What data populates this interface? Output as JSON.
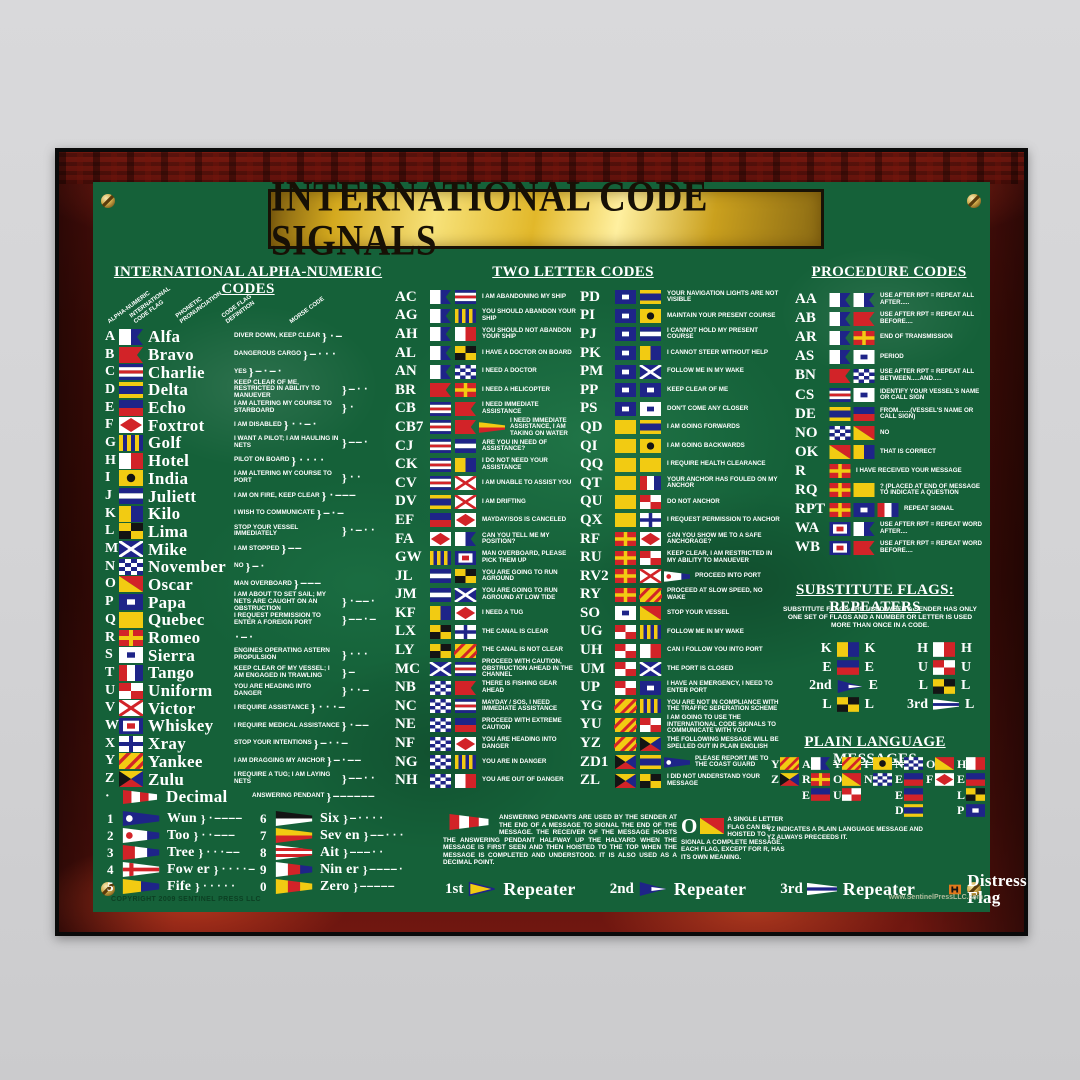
{
  "title": "INTERNATIONAL CODE SIGNALS",
  "copyright": "COPYRIGHT 2009 SENTINEL PRESS LLC",
  "website": "www.SentinelPressLLC.com",
  "colors": {
    "board_green": "#156139",
    "frame_red": "#4e0e09",
    "banner_gold": "#e2b82a",
    "flag_red": "#d22328",
    "flag_blue": "#1e2488",
    "flag_yellow": "#f2cb12",
    "distress_orange": "#e2791c"
  },
  "alpha": {
    "heading": "INTERNATIONAL ALPHA-NUMERIC CODES",
    "col_labels": [
      "ALPHA-NUMERIC",
      "INTERNATIONAL\nCODE FLAG",
      "PHONETIC\nPRONUNCIATION",
      "CODE FLAG\nDEFINITION",
      "MORSE CODE"
    ],
    "rows": [
      {
        "letter": "A",
        "flag": "A",
        "name": "Alfa",
        "meaning": "DIVER DOWN, KEEP CLEAR",
        "morse": "·—"
      },
      {
        "letter": "B",
        "flag": "B",
        "name": "Bravo",
        "meaning": "DANGEROUS CARGO",
        "morse": "—···"
      },
      {
        "letter": "C",
        "flag": "C",
        "name": "Charlie",
        "meaning": "YES",
        "morse": "—·—·"
      },
      {
        "letter": "D",
        "flag": "D",
        "name": "Delta",
        "meaning": "KEEP CLEAR OF ME, RESTRICTED IN ABILITY TO MANUEVER",
        "morse": "—··"
      },
      {
        "letter": "E",
        "flag": "E",
        "name": "Echo",
        "meaning": "I AM ALTERING MY COURSE TO STARBOARD",
        "morse": "·"
      },
      {
        "letter": "F",
        "flag": "F",
        "name": "Foxtrot",
        "meaning": "I AM DISABLED",
        "morse": "··—·"
      },
      {
        "letter": "G",
        "flag": "G",
        "name": "Golf",
        "meaning": "I WANT A PILOT; I AM HAULING IN NETS",
        "morse": "——·"
      },
      {
        "letter": "H",
        "flag": "H",
        "name": "Hotel",
        "meaning": "PILOT ON BOARD",
        "morse": "····"
      },
      {
        "letter": "I",
        "flag": "I",
        "name": "India",
        "meaning": "I AM ALTERING MY COURSE TO PORT",
        "morse": "··"
      },
      {
        "letter": "J",
        "flag": "J",
        "name": "Juliett",
        "meaning": "I AM ON FIRE, KEEP CLEAR",
        "morse": "·———"
      },
      {
        "letter": "K",
        "flag": "K",
        "name": "Kilo",
        "meaning": "I WISH TO COMMUNICATE",
        "morse": "—·—"
      },
      {
        "letter": "L",
        "flag": "L",
        "name": "Lima",
        "meaning": "STOP YOUR VESSEL IMMEDIATELY",
        "morse": "·—··"
      },
      {
        "letter": "M",
        "flag": "M",
        "name": "Mike",
        "meaning": "I AM STOPPED",
        "morse": "——"
      },
      {
        "letter": "N",
        "flag": "N",
        "name": "November",
        "meaning": "NO",
        "morse": "—·"
      },
      {
        "letter": "O",
        "flag": "O",
        "name": "Oscar",
        "meaning": "MAN OVERBOARD",
        "morse": "———"
      },
      {
        "letter": "P",
        "flag": "P",
        "name": "Papa",
        "meaning": "I AM ABOUT TO SET SAIL; MY NETS ARE CAUGHT ON AN OBSTRUCTION",
        "morse": "·——·"
      },
      {
        "letter": "Q",
        "flag": "Q",
        "name": "Quebec",
        "meaning": "I REQUEST PERMISSION TO ENTER A FOREIGN PORT",
        "morse": "——·—"
      },
      {
        "letter": "R",
        "flag": "R",
        "name": "Romeo",
        "meaning": "",
        "morse": "·—·"
      },
      {
        "letter": "S",
        "flag": "S",
        "name": "Sierra",
        "meaning": "ENGINES OPERATING ASTERN PROPULSION",
        "morse": "···"
      },
      {
        "letter": "T",
        "flag": "T",
        "name": "Tango",
        "meaning": "KEEP CLEAR OF MY VESSEL; I AM ENGAGED IN TRAWLING",
        "morse": "—"
      },
      {
        "letter": "U",
        "flag": "U",
        "name": "Uniform",
        "meaning": "YOU ARE HEADING INTO DANGER",
        "morse": "··—"
      },
      {
        "letter": "V",
        "flag": "V",
        "name": "Victor",
        "meaning": "I REQUIRE ASSISTANCE",
        "morse": "···—"
      },
      {
        "letter": "W",
        "flag": "W",
        "name": "Whiskey",
        "meaning": "I REQUIRE MEDICAL ASSISTANCE",
        "morse": "·——"
      },
      {
        "letter": "X",
        "flag": "X",
        "name": "Xray",
        "meaning": "STOP YOUR INTENTIONS",
        "morse": "—··—"
      },
      {
        "letter": "Y",
        "flag": "Y",
        "name": "Yankee",
        "meaning": "I AM DRAGGING MY ANCHOR",
        "morse": "—·——"
      },
      {
        "letter": "Z",
        "flag": "Z",
        "name": "Zulu",
        "meaning": "I REQUIRE A TUG; I AM LAYING NETS",
        "morse": "——··"
      },
      {
        "letter": "·",
        "flag": "dec",
        "name": "Decimal",
        "meaning": "ANSWERING PENDANT",
        "morse": "——————"
      }
    ],
    "numbers": [
      {
        "num": "1",
        "flag": "1",
        "name": "Wun",
        "morse": "·————"
      },
      {
        "num": "2",
        "flag": "2",
        "name": "Too",
        "morse": "··———"
      },
      {
        "num": "3",
        "flag": "3",
        "name": "Tree",
        "morse": "···——"
      },
      {
        "num": "4",
        "flag": "4",
        "name": "Fow er",
        "morse": "····—"
      },
      {
        "num": "5",
        "flag": "5",
        "name": "Fife",
        "morse": "·····"
      },
      {
        "num": "6",
        "flag": "6",
        "name": "Six",
        "morse": "—····"
      },
      {
        "num": "7",
        "flag": "7",
        "name": "Sev en",
        "morse": "——···"
      },
      {
        "num": "8",
        "flag": "8",
        "name": "Ait",
        "morse": "———··"
      },
      {
        "num": "9",
        "flag": "9",
        "name": "Nin er",
        "morse": "————·"
      },
      {
        "num": "0",
        "flag": "0",
        "name": "Zero",
        "morse": "—————"
      }
    ]
  },
  "two_letter": {
    "heading": "TWO LETTER CODES",
    "left": [
      {
        "code": "AC",
        "meaning": "I AM ABANDONING MY SHIP"
      },
      {
        "code": "AG",
        "meaning": "YOU SHOULD ABANDON YOUR SHIP"
      },
      {
        "code": "AH",
        "meaning": "YOU SHOULD NOT ABANDON YOUR SHIP"
      },
      {
        "code": "AL",
        "meaning": "I HAVE A DOCTOR ON BOARD"
      },
      {
        "code": "AN",
        "meaning": "I NEED A DOCTOR"
      },
      {
        "code": "BR",
        "meaning": "I NEED A HELICOPTER"
      },
      {
        "code": "CB",
        "meaning": "I NEED IMMEDIATE ASSISTANCE"
      },
      {
        "code": "CB7",
        "meaning": "I NEED IMMEDIATE ASSISTANCE, I AM TAKING ON WATER"
      },
      {
        "code": "CJ",
        "meaning": "ARE YOU IN NEED OF ASSISTANCE?"
      },
      {
        "code": "CK",
        "meaning": "I DO NOT NEED YOUR ASSISTANCE"
      },
      {
        "code": "CV",
        "meaning": "I AM UNABLE TO ASSIST YOU"
      },
      {
        "code": "DV",
        "meaning": "I AM DRIFTING"
      },
      {
        "code": "EF",
        "meaning": "MAYDAY/SOS IS CANCELED"
      },
      {
        "code": "FA",
        "meaning": "CAN YOU TELL ME MY POSITION?"
      },
      {
        "code": "GW",
        "meaning": "MAN OVERBOARD, PLEASE PICK THEM UP"
      },
      {
        "code": "JL",
        "meaning": "YOU ARE GOING TO RUN AGROUND"
      },
      {
        "code": "JM",
        "meaning": "YOU ARE GOING TO RUN AGROUND AT LOW TIDE"
      },
      {
        "code": "KF",
        "meaning": "I NEED A TUG"
      },
      {
        "code": "LX",
        "meaning": "THE CANAL IS CLEAR"
      },
      {
        "code": "LY",
        "meaning": "THE CANAL IS NOT CLEAR"
      },
      {
        "code": "MC",
        "meaning": "PROCEED WITH CAUTION, OBSTRUCTION AHEAD IN THE CHANNEL"
      },
      {
        "code": "NB",
        "meaning": "THERE IS FISHING GEAR AHEAD"
      },
      {
        "code": "NC",
        "meaning": "MAYDAY / SOS, I NEED IMMEDIATE ASSISTANCE"
      },
      {
        "code": "NE",
        "meaning": "PROCEED WITH EXTREME CAUTION"
      },
      {
        "code": "NF",
        "meaning": "YOU ARE HEADING INTO DANGER"
      },
      {
        "code": "NG",
        "meaning": "YOU ARE IN DANGER"
      },
      {
        "code": "NH",
        "meaning": "YOU ARE OUT OF DANGER"
      }
    ],
    "right": [
      {
        "code": "PD",
        "meaning": "YOUR NAVIGATION LIGHTS ARE NOT VISIBLE"
      },
      {
        "code": "PI",
        "meaning": "MAINTAIN YOUR PRESENT COURSE"
      },
      {
        "code": "PJ",
        "meaning": "I CANNOT HOLD MY PRESENT COURSE"
      },
      {
        "code": "PK",
        "meaning": "I CANNOT STEER WITHOUT HELP"
      },
      {
        "code": "PM",
        "meaning": "FOLLOW ME IN MY WAKE"
      },
      {
        "code": "PP",
        "meaning": "KEEP CLEAR OF ME"
      },
      {
        "code": "PS",
        "meaning": "DON'T COME ANY CLOSER"
      },
      {
        "code": "QD",
        "meaning": "I AM GOING FORWARDS"
      },
      {
        "code": "QI",
        "meaning": "I AM GOING BACKWARDS"
      },
      {
        "code": "QQ",
        "meaning": "I REQUIRE HEALTH CLEARANCE"
      },
      {
        "code": "QT",
        "meaning": "YOUR ANCHOR HAS FOULED ON MY ANCHOR"
      },
      {
        "code": "QU",
        "meaning": "DO NOT ANCHOR"
      },
      {
        "code": "QX",
        "meaning": "I REQUEST PERMISSION TO ANCHOR"
      },
      {
        "code": "RF",
        "meaning": "CAN YOU SHOW ME TO A SAFE ANCHORAGE?"
      },
      {
        "code": "RU",
        "meaning": "KEEP CLEAR, I AM RESTRICTED IN MY ABILITY TO MANUEVER"
      },
      {
        "code": "RV2",
        "meaning": "PROCEED INTO PORT"
      },
      {
        "code": "RY",
        "meaning": "PROCEED AT SLOW SPEED, NO WAKE"
      },
      {
        "code": "SO",
        "meaning": "STOP YOUR VESSEL"
      },
      {
        "code": "UG",
        "meaning": "FOLLOW ME IN MY WAKE"
      },
      {
        "code": "UH",
        "meaning": "CAN I FOLLOW YOU INTO PORT"
      },
      {
        "code": "UM",
        "meaning": "THE PORT IS CLOSED"
      },
      {
        "code": "UP",
        "meaning": "I HAVE AN EMERGENCY, I NEED TO ENTER PORT"
      },
      {
        "code": "YG",
        "meaning": "YOU ARE NOT IN COMPLIANCE WITH THE TRAFFIC SEPERATION SCHEME"
      },
      {
        "code": "YU",
        "meaning": "I AM GOING TO USE THE INTERNATIONAL CODE SIGNALS TO COMMUNICATE WITH YOU"
      },
      {
        "code": "YZ",
        "meaning": "THE FOLLOWING MESSAGE WILL BE SPELLED OUT IN PLAIN ENGLISH"
      },
      {
        "code": "ZD1",
        "meaning": "PLEASE REPORT ME TO THE COAST GUARD"
      },
      {
        "code": "ZL",
        "meaning": "I DID NOT UNDERSTAND YOUR MESSAGE"
      }
    ]
  },
  "procedure": {
    "heading": "PROCEDURE CODES",
    "rows": [
      {
        "code": "AA",
        "meaning": "USE AFTER RPT = REPEAT ALL AFTER....."
      },
      {
        "code": "AB",
        "meaning": "USE AFTER RPT = REPEAT ALL BEFORE...."
      },
      {
        "code": "AR",
        "meaning": "END OF TRANSMISSION"
      },
      {
        "code": "AS",
        "meaning": "PERIOD"
      },
      {
        "code": "BN",
        "meaning": "USE AFTER RPT = REPEAT ALL BETWEEN.....AND....."
      },
      {
        "code": "CS",
        "meaning": "IDENTIFY YOUR VESSEL'S NAME OR CALL SIGN"
      },
      {
        "code": "DE",
        "meaning": "FROM.......(VESSEL'S NAME OR CALL SIGN)"
      },
      {
        "code": "NO",
        "meaning": "NO"
      },
      {
        "code": "OK",
        "meaning": "THAT IS CORRECT"
      },
      {
        "code": "R",
        "meaning": "I HAVE RECEIVED YOUR MESSAGE"
      },
      {
        "code": "RQ",
        "meaning": "?  (PLACED AT END OF MESSAGE TO INDICATE A QUESTION"
      },
      {
        "code": "RPT",
        "meaning": "REPEAT SIGNAL"
      },
      {
        "code": "WA",
        "meaning": "USE AFTER RPT = REPEAT WORD AFTER...."
      },
      {
        "code": "WB",
        "meaning": "USE AFTER RPT = REPEAT WORD BEFORE...."
      }
    ]
  },
  "substitute": {
    "heading": "SUBSTITUTE FLAGS: REPEATERS",
    "note": "SUBSTITUTE FLAGS ARE USED WHEN A SENDER HAS ONLY ONE SET OF FLAGS AND A NUMBER OR LETTER IS USED MORE THAN ONCE IN A CODE.",
    "left_rows": [
      {
        "label": "K",
        "flag": "K",
        "result": "K"
      },
      {
        "label": "E",
        "flag": "E",
        "result": "E"
      },
      {
        "label": "2nd",
        "flag": "sub2",
        "result": "E"
      },
      {
        "label": "L",
        "flag": "L",
        "result": "L"
      }
    ],
    "right_rows": [
      {
        "label": "H",
        "flag": "H",
        "result": "H"
      },
      {
        "label": "U",
        "flag": "U",
        "result": "U"
      },
      {
        "label": "L",
        "flag": "L",
        "result": "L"
      },
      {
        "label": "3rd",
        "flag": "sub3",
        "result": "L"
      }
    ]
  },
  "plain_language": {
    "heading": "PLAIN LANGUAGE MESSAGES",
    "message": "YZ ARE YOU IN NEED OF HELP",
    "columns": [
      [
        "Y",
        "Z"
      ],
      [
        "A",
        "R",
        "E"
      ],
      [
        "Y",
        "O",
        "U"
      ],
      [
        "I",
        "N"
      ],
      [
        "N",
        "E",
        "E",
        "D"
      ],
      [
        "O",
        "F"
      ],
      [
        "H",
        "E",
        "L",
        "P"
      ]
    ],
    "note": "YZ INDICATES A PLAIN LANGUAGE MESSAGE AND YZ ALWAYS PRECEEDS IT."
  },
  "answering": {
    "text": "ANSWERING PENDANTS ARE USED BY THE SENDER AT THE END OF A MESSAGE TO SIGNAL THE END OF THE MESSAGE. THE RECEIVER OF THE MESSAGE HOISTS THE ANSWERING PENDANT HALFWAY UP THE HALYARD WHEN THE MESSAGE IS FIRST SEEN AND THEN HOISTED TO THE TOP WHEN THE MESSAGE IS COMPLETED AND UNDERSTOOD. IT IS ALSO USED AS A DECIMAL POINT."
  },
  "single_letter": {
    "letter": "O",
    "flag": "O",
    "text": "A SINGLE LETTER FLAG CAN BE HOISTED TO SIGNAL A COMPLETE MESSAGE. EACH FLAG, EXCEPT FOR R, HAS ITS OWN MEANING."
  },
  "repeaters": [
    {
      "label": "1st",
      "flag": "sub1",
      "word": "Repeater"
    },
    {
      "label": "2nd",
      "flag": "sub2",
      "word": "Repeater"
    },
    {
      "label": "3rd",
      "flag": "sub3",
      "word": "Repeater"
    }
  ],
  "distress": {
    "label": "Distress Flag",
    "flag": "distress"
  }
}
